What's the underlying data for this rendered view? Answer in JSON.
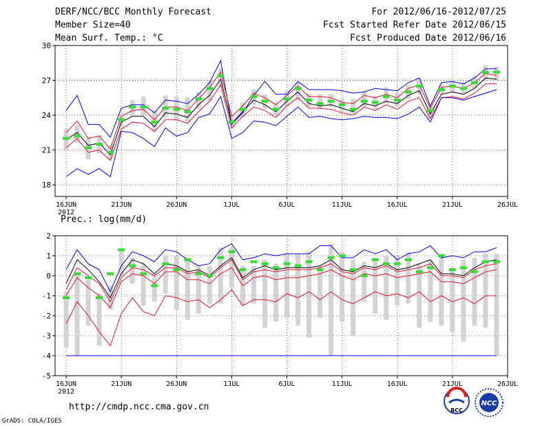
{
  "header": {
    "left": [
      "DERF/NCC/BCC Monthly Forecast",
      "Member Size=40",
      "Mean Surf. Temp.: °C"
    ],
    "right": [
      "For 2012/06/16-2012/07/25",
      "Fcst Started Refer Date 2012/06/15",
      "Fcst Produced Date 2012/06/16"
    ]
  },
  "footer": {
    "url": "http://cmdp.ncc.cma.gov.cn",
    "grads": "GrADS: COLA/IGES",
    "logo_bcc": "BCC",
    "logo_ncc": "NCC"
  },
  "colors": {
    "blue": "#0000ee",
    "red": "#e8102a",
    "black": "#000000",
    "green": "#33dd33",
    "gray": "#d3d3d3",
    "grid": "#333333"
  },
  "chart_data": [
    {
      "type": "line",
      "title": "Mean Surf. Temp.: °C",
      "xlabel": "",
      "ylabel": "°C",
      "x_tick_labels": [
        "16JUN",
        "21JUN",
        "26JUN",
        "1JUL",
        "6JUL",
        "11JUL",
        "16JUL",
        "21JUL",
        "26JUL"
      ],
      "x_tick_sublabel": "2012",
      "x_tick_days": [
        0,
        5,
        10,
        15,
        20,
        25,
        30,
        35,
        40
      ],
      "xlim": [
        -1,
        40
      ],
      "ylim": [
        17,
        30
      ],
      "yticks": [
        18,
        21,
        24,
        27,
        30
      ],
      "grid": true,
      "series": [
        {
          "name": "max",
          "color": "blue",
          "values": [
            24.4,
            25.7,
            23.2,
            23.2,
            22.1,
            24.6,
            24.9,
            24.9,
            24.2,
            25.3,
            25.2,
            25.0,
            25.8,
            26.8,
            28.7,
            23.2,
            24.2,
            25.7,
            26.9,
            25.8,
            25.8,
            26.9,
            26.2,
            26.2,
            26.2,
            26.1,
            25.9,
            26.0,
            26.3,
            26.2,
            26.1,
            26.8,
            27.2,
            24.8,
            26.8,
            26.9,
            26.7,
            27.2,
            28.0,
            28.0
          ]
        },
        {
          "name": "p90",
          "color": "red",
          "values": [
            22.5,
            23.5,
            22.0,
            22.2,
            21.1,
            23.9,
            24.4,
            24.5,
            23.6,
            24.7,
            24.7,
            24.4,
            25.4,
            26.4,
            27.7,
            23.9,
            24.8,
            25.9,
            25.5,
            24.9,
            25.7,
            26.5,
            25.6,
            25.6,
            25.5,
            25.1,
            25.0,
            25.7,
            25.5,
            25.8,
            25.5,
            26.3,
            26.6,
            24.6,
            26.4,
            26.5,
            26.3,
            26.8,
            27.6,
            27.4
          ]
        },
        {
          "name": "mean",
          "color": "black",
          "values": [
            21.9,
            22.5,
            21.4,
            21.6,
            20.6,
            23.4,
            23.9,
            23.9,
            23.0,
            24.2,
            24.1,
            23.8,
            24.9,
            25.7,
            27.1,
            23.3,
            24.3,
            25.3,
            24.9,
            24.3,
            25.2,
            26.0,
            25.0,
            24.8,
            24.9,
            24.6,
            24.3,
            25.0,
            24.8,
            25.2,
            25.0,
            25.7,
            26.1,
            24.1,
            25.8,
            26.0,
            25.8,
            26.3,
            27.2,
            27.1
          ]
        },
        {
          "name": "p10",
          "color": "red",
          "values": [
            21.2,
            22.0,
            20.8,
            21.0,
            20.1,
            22.8,
            23.4,
            23.3,
            22.6,
            23.6,
            23.6,
            23.3,
            24.3,
            25.2,
            26.6,
            22.9,
            23.9,
            24.7,
            24.4,
            23.8,
            24.8,
            25.5,
            24.6,
            24.6,
            24.5,
            24.2,
            24.0,
            24.7,
            24.4,
            24.9,
            24.5,
            25.2,
            25.5,
            23.7,
            25.5,
            25.6,
            25.4,
            25.9,
            26.7,
            26.7
          ]
        },
        {
          "name": "min",
          "color": "blue",
          "values": [
            18.7,
            19.4,
            18.9,
            19.4,
            18.7,
            22.6,
            22.5,
            22.0,
            21.3,
            22.9,
            22.2,
            22.5,
            23.8,
            24.1,
            25.6,
            22.0,
            22.5,
            23.5,
            23.4,
            23.1,
            23.9,
            24.7,
            23.8,
            23.9,
            23.7,
            23.6,
            23.7,
            23.9,
            23.8,
            23.8,
            23.7,
            24.1,
            24.7,
            23.4,
            25.5,
            25.5,
            25.3,
            25.6,
            25.9,
            26.2
          ]
        },
        {
          "name": "observed",
          "color": "green",
          "marker": "dash",
          "values": [
            22.0,
            22.2,
            21.2,
            21.5,
            20.8,
            23.6,
            24.7,
            24.7,
            23.4,
            24.6,
            24.5,
            24.3,
            25.4,
            26.3,
            27.4,
            23.4,
            24.5,
            25.6,
            25.2,
            24.5,
            25.4,
            26.3,
            25.3,
            25.0,
            25.2,
            24.9,
            24.5,
            25.2,
            25.1,
            25.6,
            25.3,
            26.0,
            26.5,
            24.4,
            26.2,
            26.5,
            26.3,
            26.8,
            27.7,
            27.7
          ]
        }
      ],
      "box_range": {
        "name": "observed range",
        "color": "gray",
        "lower": [
          20.9,
          21.6,
          20.2,
          20.7,
          20.2,
          22.9,
          24.0,
          24.0,
          22.6,
          23.8,
          23.5,
          23.4,
          24.5,
          25.2,
          26.4,
          22.8,
          23.8,
          24.9,
          24.6,
          24.0,
          24.8,
          25.3,
          24.7,
          24.6,
          24.7,
          24.3,
          24.1,
          24.7,
          24.5,
          25.0,
          24.8,
          25.4,
          25.8,
          23.7,
          25.8,
          26.0,
          25.9,
          26.3,
          26.9,
          26.9
        ],
        "upper": [
          22.8,
          23.1,
          22.1,
          22.3,
          21.4,
          24.2,
          25.3,
          25.6,
          24.4,
          25.7,
          25.6,
          25.5,
          26.0,
          27.0,
          28.0,
          24.0,
          25.1,
          26.2,
          25.8,
          25.1,
          26.1,
          26.8,
          25.8,
          25.8,
          25.8,
          25.4,
          25.4,
          26.0,
          25.6,
          26.4,
          25.9,
          26.6,
          27.2,
          24.8,
          26.6,
          27.0,
          26.8,
          27.4,
          28.3,
          28.2
        ]
      }
    },
    {
      "type": "line",
      "title": "Prec.: log(mm/d)",
      "xlabel": "",
      "ylabel": "log(mm/d)",
      "x_tick_labels": [
        "16JUN",
        "21JUN",
        "26JUN",
        "1JUL",
        "6JUL",
        "11JUL",
        "16JUL",
        "21JUL",
        "26JUL"
      ],
      "x_tick_sublabel": "2012",
      "x_tick_days": [
        0,
        5,
        10,
        15,
        20,
        25,
        30,
        35,
        40
      ],
      "xlim": [
        -1,
        40
      ],
      "ylim": [
        -5,
        2
      ],
      "yticks": [
        -5,
        -4,
        -3,
        -2,
        -1,
        0,
        1,
        2
      ],
      "grid": true,
      "series": [
        {
          "name": "max",
          "color": "blue",
          "values": [
            0.3,
            1.3,
            0.6,
            0.3,
            -0.8,
            0.5,
            1.2,
            1.0,
            0.7,
            1.3,
            1.2,
            0.8,
            0.5,
            0.6,
            1.3,
            1.6,
            0.8,
            0.9,
            1.1,
            1.0,
            1.1,
            1.1,
            1.1,
            1.5,
            1.5,
            0.9,
            0.9,
            1.3,
            1.1,
            1.3,
            0.8,
            1.1,
            1.2,
            1.5,
            0.9,
            1.0,
            0.9,
            1.2,
            1.2,
            1.4
          ]
        },
        {
          "name": "mean",
          "color": "black",
          "values": [
            -0.4,
            0.8,
            0.3,
            -0.3,
            -1.1,
            0.1,
            0.8,
            0.6,
            0.1,
            0.6,
            0.5,
            0.2,
            0.3,
            0.0,
            0.5,
            0.9,
            -0.1,
            0.3,
            0.5,
            0.3,
            0.4,
            0.4,
            0.4,
            0.5,
            0.8,
            0.3,
            0.2,
            0.5,
            0.4,
            0.6,
            0.3,
            0.4,
            0.6,
            0.8,
            0.1,
            0.1,
            0.0,
            0.4,
            0.7,
            0.8
          ]
        },
        {
          "name": "p90",
          "color": "red",
          "values": [
            -0.7,
            0.4,
            0.0,
            -0.4,
            -1.3,
            -0.1,
            0.4,
            0.3,
            0.0,
            0.4,
            0.4,
            0.1,
            0.2,
            -0.1,
            0.4,
            0.8,
            -0.2,
            0.2,
            0.3,
            0.2,
            0.3,
            0.3,
            0.3,
            0.4,
            0.6,
            0.2,
            0.1,
            0.4,
            0.3,
            0.5,
            0.2,
            0.3,
            0.4,
            0.6,
            0.0,
            0.0,
            -0.1,
            0.3,
            0.5,
            0.6
          ]
        },
        {
          "name": "p10",
          "color": "red",
          "values": [
            -1.0,
            -0.1,
            -0.6,
            -1.0,
            -1.6,
            -0.3,
            0.1,
            0.0,
            -0.4,
            0.2,
            0.2,
            -0.2,
            -0.2,
            -0.4,
            0.1,
            0.4,
            -0.5,
            -0.1,
            0.0,
            -0.2,
            -0.1,
            -0.1,
            0.0,
            0.1,
            0.3,
            0.0,
            -0.2,
            0.1,
            0.0,
            0.1,
            -0.1,
            0.0,
            0.1,
            0.2,
            -0.3,
            -0.3,
            -0.4,
            -0.1,
            0.2,
            0.3
          ]
        },
        {
          "name": "min",
          "color": "red",
          "values": [
            -2.4,
            -1.3,
            -2.0,
            -2.8,
            -3.5,
            -1.9,
            -1.1,
            -1.8,
            -2.0,
            -1.0,
            -1.1,
            -1.3,
            -1.2,
            -1.6,
            -1.2,
            -0.7,
            -1.5,
            -1.2,
            -1.2,
            -1.3,
            -0.9,
            -1.1,
            -0.8,
            -1.2,
            -0.8,
            -1.2,
            -1.4,
            -1.1,
            -0.8,
            -1.0,
            -0.9,
            -1.1,
            -0.8,
            -1.3,
            -1.0,
            -1.3,
            -1.1,
            -1.4,
            -1.0,
            -1.0
          ]
        },
        {
          "name": "observed",
          "color": "green",
          "marker": "dash",
          "values": [
            -1.1,
            0.1,
            -0.1,
            -1.1,
            0.1,
            1.3,
            0.5,
            0.1,
            -0.5,
            0.6,
            0.3,
            0.8,
            0.1,
            0.0,
            0.9,
            1.2,
            0.3,
            0.7,
            0.6,
            0.4,
            0.6,
            0.5,
            0.7,
            0.3,
            0.9,
            1.0,
            0.3,
            0.0,
            0.8,
            0.6,
            0.6,
            0.8,
            0.2,
            0.4,
            1.0,
            0.3,
            0.4,
            0.2,
            0.7,
            0.7
          ]
        }
      ],
      "box_range": {
        "name": "observed range",
        "color": "gray",
        "lower": [
          -3.6,
          -4.0,
          -2.5,
          -3.5,
          -1.7,
          0.0,
          -0.4,
          -1.5,
          -1.3,
          -0.9,
          -1.7,
          -2.2,
          -1.9,
          -1.4,
          -1.4,
          -0.6,
          -1.5,
          -1.4,
          -2.6,
          -2.3,
          -2.1,
          -2.5,
          -3.1,
          -2.1,
          -4.0,
          -2.3,
          -3.0,
          -1.3,
          -1.9,
          -2.2,
          -1.5,
          -1.4,
          -2.6,
          -2.3,
          -2.5,
          -2.8,
          -3.3,
          -2.5,
          -2.6,
          -4.0
        ],
        "upper": [
          -0.8,
          0.1,
          -0.2,
          -0.9,
          -0.5,
          1.3,
          0.9,
          0.6,
          0.1,
          1.0,
          1.0,
          0.9,
          0.5,
          0.5,
          1.4,
          1.4,
          0.5,
          0.5,
          0.8,
          0.6,
          1.1,
          1.1,
          1.2,
          0.5,
          1.6,
          1.2,
          0.8,
          0.7,
          0.9,
          1.0,
          1.0,
          1.2,
          0.6,
          0.8,
          1.1,
          0.4,
          0.8,
          0.9,
          1.1,
          1.1
        ]
      },
      "reference_line": {
        "name": "floor",
        "color": "blue",
        "value": -4
      }
    }
  ]
}
